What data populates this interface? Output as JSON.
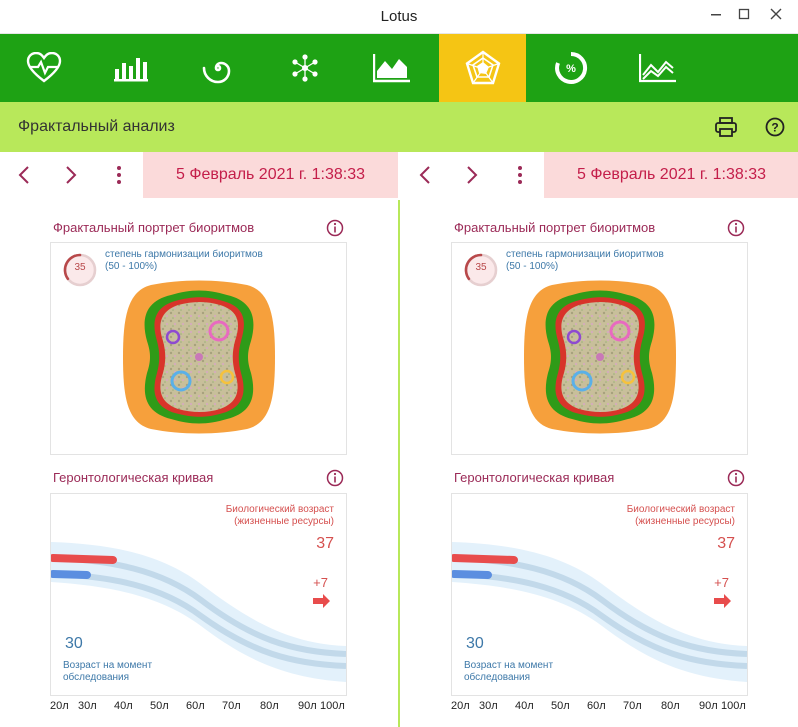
{
  "window": {
    "title": "Lotus"
  },
  "toolbar": {
    "buttons": [
      {
        "name": "heart-pulse-icon",
        "active": false
      },
      {
        "name": "bar-chart-icon",
        "active": false
      },
      {
        "name": "spiral-icon",
        "active": false
      },
      {
        "name": "molecule-icon",
        "active": false
      },
      {
        "name": "area-chart-icon",
        "active": false
      },
      {
        "name": "pentagon-radar-icon",
        "active": true
      },
      {
        "name": "percent-gauge-icon",
        "active": false
      },
      {
        "name": "line-chart-icon",
        "active": false
      }
    ]
  },
  "subbar": {
    "title": "Фрактальный анализ"
  },
  "panels": [
    {
      "date": "5 Февраль 2021 г. 1:38:33",
      "fractal": {
        "label": "Фрактальный портрет биоритмов",
        "score": "35",
        "score_fraction": 0.35,
        "caption_line1": "степень гармонизации биоритмов",
        "caption_line2": "(50 - 100%)"
      },
      "gerontology": {
        "label": "Геронтологическая кривая",
        "bio_label_line1": "Биологический возраст",
        "bio_label_line2": "(жизненные ресурсы)",
        "bio_age": "37",
        "delta": "+7",
        "exam_age": "30",
        "exam_label_line1": "Возраст на момент",
        "exam_label_line2": "обследования",
        "axis_ticks": [
          "20л",
          "30л",
          "40л",
          "50л",
          "60л",
          "70л",
          "80л",
          "90л",
          "100л"
        ]
      }
    },
    {
      "date": "5 Февраль 2021 г. 1:38:33",
      "fractal": {
        "label": "Фрактальный портрет биоритмов",
        "score": "35",
        "score_fraction": 0.35,
        "caption_line1": "степень гармонизации биоритмов",
        "caption_line2": "(50 - 100%)"
      },
      "gerontology": {
        "label": "Геронтологическая кривая",
        "bio_label_line1": "Биологический возраст",
        "bio_label_line2": "(жизненные ресурсы)",
        "bio_age": "37",
        "delta": "+7",
        "exam_age": "30",
        "exam_label_line1": "Возраст на момент",
        "exam_label_line2": "обследования",
        "axis_ticks": [
          "20л",
          "30л",
          "40л",
          "50л",
          "60л",
          "70л",
          "80л",
          "90л",
          "100л"
        ]
      }
    }
  ],
  "colors": {
    "toolbar_green": "#1ea214",
    "active_yellow": "#f5c514",
    "subbar_lime": "#b8e85a",
    "date_bg": "#fbdada",
    "date_text": "#c41e4a",
    "label_purple": "#9b2a57",
    "bio_red": "#d5504f",
    "exam_blue": "#3d78a8"
  }
}
